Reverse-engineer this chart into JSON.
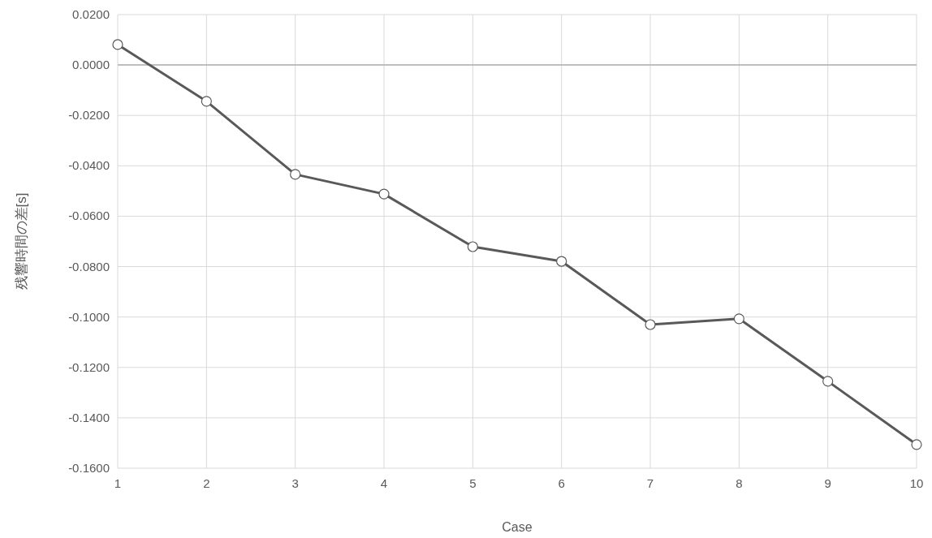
{
  "chart_data": {
    "type": "line",
    "xlabel": "Case",
    "ylabel": "残響時間の差[s]",
    "x": [
      1,
      2,
      3,
      4,
      5,
      6,
      7,
      8,
      9,
      10
    ],
    "series": [
      {
        "color": "#595959",
        "values": [
          0.0081,
          -0.0144,
          -0.0434,
          -0.0512,
          -0.0721,
          -0.0779,
          -0.103,
          -0.1007,
          -0.1255,
          -0.1506
        ]
      }
    ],
    "xlim": [
      1,
      10
    ],
    "xticks": [
      1,
      2,
      3,
      4,
      5,
      6,
      7,
      8,
      9,
      10
    ],
    "ylim": [
      -0.16,
      0.02
    ],
    "yticks": [
      {
        "value": 0.02,
        "label": "0.0200"
      },
      {
        "value": 0,
        "label": "0.0000"
      },
      {
        "value": -0.02,
        "label": "-0.0200"
      },
      {
        "value": -0.04,
        "label": "-0.0400"
      },
      {
        "value": -0.06,
        "label": "-0.0600"
      },
      {
        "value": -0.08,
        "label": "-0.0800"
      },
      {
        "value": -0.1,
        "label": "-0.1000"
      },
      {
        "value": -0.12,
        "label": "-0.1200"
      },
      {
        "value": -0.14,
        "label": "-0.1400"
      },
      {
        "value": -0.16,
        "label": "-0.1600"
      }
    ],
    "ref_lines": [
      {
        "axis": "y",
        "value": 0,
        "color": "#bfbfbf"
      }
    ],
    "grid": true,
    "marker": "circle",
    "line_style": "solid"
  }
}
